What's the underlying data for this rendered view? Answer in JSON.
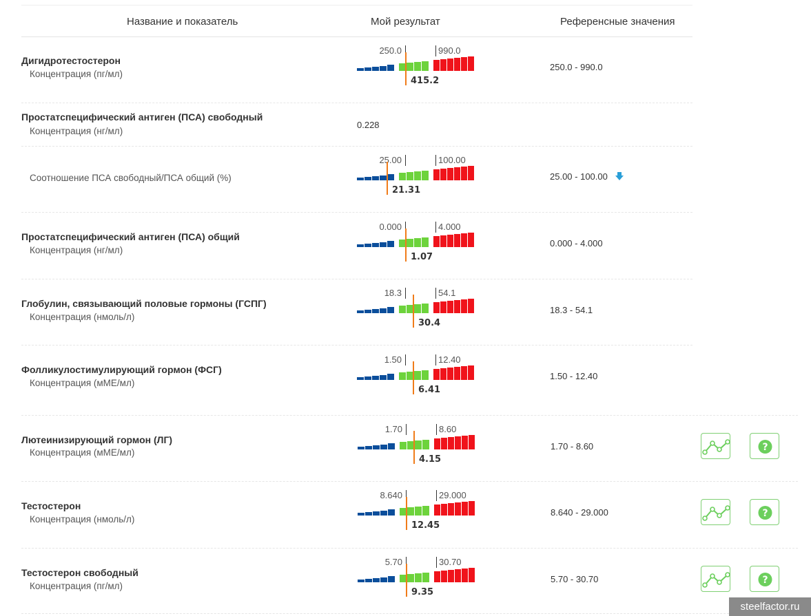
{
  "header": {
    "col_name": "Название и показатель",
    "col_result": "Мой результат",
    "col_ref": "Референсные значения"
  },
  "rows": [
    {
      "name": "Дигидротестостерон",
      "unit": "Концентрация (пг/мл)",
      "low": "250.0",
      "high": "990.0",
      "value": "415.2",
      "ref": "250.0 - 990.0"
    },
    {
      "name": "Простатспецифический антиген (ПСА) свободный",
      "unit": "Концентрация (нг/мл)",
      "plain_value": "0.228"
    },
    {
      "name": "",
      "unit": "Соотношение ПСА свободный/ПСА общий (%)",
      "low": "25.00",
      "high": "100.00",
      "value": "21.31",
      "ref": "25.00 - 100.00",
      "flag": "below-range-arrow-icon"
    },
    {
      "name": "Простатспецифический антиген (ПСА) общий",
      "unit": "Концентрация (нг/мл)",
      "low": "0.000",
      "high": "4.000",
      "value": "1.07",
      "ref": "0.000 - 4.000"
    },
    {
      "name": "Глобулин, связывающий половые гормоны (ГСПГ)",
      "unit": "Концентрация (нмоль/л)",
      "low": "18.3",
      "high": "54.1",
      "value": "30.4",
      "ref": "18.3 - 54.1"
    },
    {
      "name": "Фолликулостимулирующий гормон (ФСГ)",
      "unit": "Концентрация (мМЕ/мл)",
      "low": "1.50",
      "high": "12.40",
      "value": "6.41",
      "ref": "1.50 - 12.40"
    },
    {
      "name": "Лютеинизирующий гормон (ЛГ)",
      "unit": "Концентрация (мМЕ/мл)",
      "low": "1.70",
      "high": "8.60",
      "value": "4.15",
      "ref": "1.70 - 8.60",
      "buttons": true
    },
    {
      "name": "Тестостерон",
      "unit": "Концентрация (нмоль/л)",
      "low": "8.640",
      "high": "29.000",
      "value": "12.45",
      "ref": "8.640 - 29.000",
      "buttons": true
    },
    {
      "name": "Тестостерон свободный",
      "unit": "Концентрация (пг/мл)",
      "low": "5.70",
      "high": "30.70",
      "value": "9.35",
      "ref": "5.70 - 30.70",
      "buttons": true
    }
  ],
  "icons": {
    "trend": "trend-chart-icon",
    "help": "help-question-icon"
  },
  "colors": {
    "below": "#0b4e9b",
    "normal": "#6dd33c",
    "above": "#f0131b",
    "marker": "#f07c1a",
    "button_border": "#7fcf73",
    "arrow": "#2a9fd8"
  },
  "watermark": "steelfactor.ru"
}
